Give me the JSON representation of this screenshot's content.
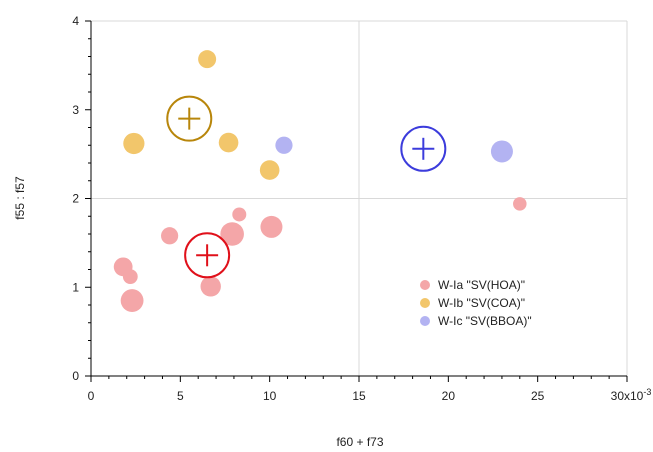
{
  "chart_data": {
    "type": "scatter",
    "title": "",
    "xlabel": "f60 + f73",
    "ylabel": "f55 : f57",
    "xlim": [
      0,
      30
    ],
    "ylim": [
      0,
      4
    ],
    "x_ticks": [
      0,
      5,
      10,
      15,
      20,
      25,
      30
    ],
    "x_tick_labels": [
      "0",
      "5",
      "10",
      "15",
      "20",
      "25",
      "30x10-3"
    ],
    "y_ticks": [
      0,
      1,
      2,
      3,
      4
    ],
    "y_tick_labels": [
      "0",
      "1",
      "2",
      "3",
      "4"
    ],
    "x_scale_note": "x10-3",
    "grid": true,
    "legend_position": "bottom-right",
    "series": [
      {
        "name": "W-Ia \"SV(HOA)\"",
        "color": "#f4a6a8",
        "centroid_color": "#e0101a",
        "points": [
          {
            "x": 1.8,
            "y": 1.23,
            "size": 0.55
          },
          {
            "x": 2.2,
            "y": 1.12,
            "size": 0.3
          },
          {
            "x": 2.3,
            "y": 0.85,
            "size": 0.8
          },
          {
            "x": 4.4,
            "y": 1.58,
            "size": 0.45
          },
          {
            "x": 6.7,
            "y": 1.01,
            "size": 0.65
          },
          {
            "x": 7.9,
            "y": 1.6,
            "size": 0.85
          },
          {
            "x": 8.3,
            "y": 1.82,
            "size": 0.25
          },
          {
            "x": 10.1,
            "y": 1.68,
            "size": 0.75
          },
          {
            "x": 24.0,
            "y": 1.94,
            "size": 0.22
          }
        ],
        "centroid": {
          "x": 6.5,
          "y": 1.36
        }
      },
      {
        "name": "W-Ib \"SV(COA)\"",
        "color": "#f2c66b",
        "centroid_color": "#b8860b",
        "points": [
          {
            "x": 6.5,
            "y": 3.57,
            "size": 0.5
          },
          {
            "x": 2.4,
            "y": 2.62,
            "size": 0.7
          },
          {
            "x": 7.7,
            "y": 2.63,
            "size": 0.6
          },
          {
            "x": 10.0,
            "y": 2.32,
            "size": 0.6
          }
        ],
        "centroid": {
          "x": 5.5,
          "y": 2.9
        }
      },
      {
        "name": "W-Ic \"SV(BBOA)\"",
        "color": "#b3b3f2",
        "centroid_color": "#3c3cdc",
        "points": [
          {
            "x": 10.8,
            "y": 2.6,
            "size": 0.45
          },
          {
            "x": 23.0,
            "y": 2.53,
            "size": 0.75
          }
        ],
        "centroid": {
          "x": 18.6,
          "y": 2.56
        }
      }
    ]
  }
}
